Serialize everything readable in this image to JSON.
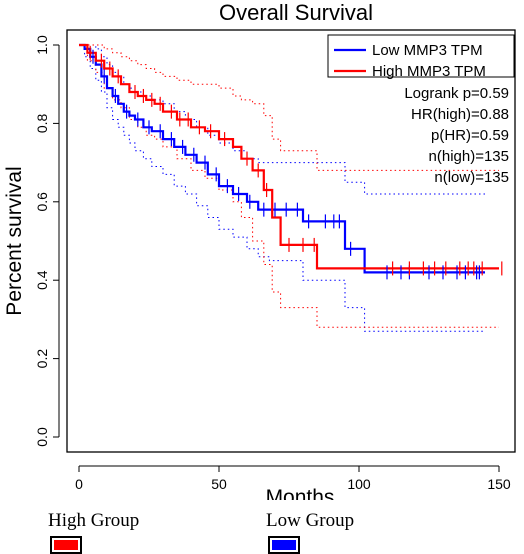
{
  "chart_data": {
    "type": "line",
    "title": "Overall Survival",
    "xlabel": "Months",
    "ylabel": "Percent survival",
    "xlim": [
      0,
      150
    ],
    "ylim": [
      0,
      1.0
    ],
    "x_ticks": [
      "0",
      "50",
      "100",
      "150"
    ],
    "y_ticks": [
      "0.0",
      "0.2",
      "0.4",
      "0.6",
      "0.8",
      "1.0"
    ],
    "series": [
      {
        "name": "Low MMP3 TPM",
        "color": "#0000ff",
        "x": [
          0,
          2,
          4,
          6,
          8,
          10,
          12,
          14,
          16,
          18,
          20,
          23,
          26,
          30,
          34,
          38,
          42,
          46,
          50,
          55,
          60,
          64,
          68,
          80,
          95,
          102,
          145
        ],
        "y": [
          1.0,
          0.99,
          0.97,
          0.95,
          0.92,
          0.89,
          0.87,
          0.85,
          0.83,
          0.82,
          0.81,
          0.79,
          0.78,
          0.76,
          0.74,
          0.72,
          0.7,
          0.67,
          0.64,
          0.62,
          0.6,
          0.58,
          0.58,
          0.55,
          0.48,
          0.42,
          0.42
        ],
        "ci_upper": [
          1.0,
          1.0,
          1.0,
          0.99,
          0.97,
          0.95,
          0.93,
          0.92,
          0.9,
          0.89,
          0.88,
          0.87,
          0.86,
          0.85,
          0.83,
          0.81,
          0.79,
          0.77,
          0.75,
          0.73,
          0.71,
          0.7,
          0.7,
          0.7,
          0.65,
          0.62,
          0.62
        ],
        "ci_lower": [
          1.0,
          0.97,
          0.94,
          0.91,
          0.88,
          0.84,
          0.81,
          0.79,
          0.77,
          0.75,
          0.73,
          0.71,
          0.69,
          0.67,
          0.64,
          0.62,
          0.59,
          0.56,
          0.53,
          0.51,
          0.48,
          0.46,
          0.45,
          0.4,
          0.33,
          0.27,
          0.27
        ]
      },
      {
        "name": "High MMP3 TPM",
        "color": "#ff0000",
        "x": [
          0,
          3,
          6,
          9,
          12,
          15,
          18,
          21,
          24,
          27,
          30,
          35,
          40,
          45,
          50,
          55,
          58,
          62,
          66,
          69,
          72,
          85,
          150
        ],
        "y": [
          1.0,
          0.98,
          0.96,
          0.94,
          0.92,
          0.9,
          0.88,
          0.87,
          0.86,
          0.85,
          0.83,
          0.81,
          0.79,
          0.78,
          0.76,
          0.74,
          0.71,
          0.68,
          0.63,
          0.56,
          0.49,
          0.43,
          0.43
        ],
        "ci_upper": [
          1.0,
          1.0,
          1.0,
          0.99,
          0.98,
          0.97,
          0.96,
          0.95,
          0.94,
          0.93,
          0.92,
          0.91,
          0.9,
          0.9,
          0.89,
          0.87,
          0.86,
          0.85,
          0.82,
          0.76,
          0.73,
          0.68,
          0.68
        ],
        "ci_lower": [
          1.0,
          0.96,
          0.93,
          0.89,
          0.86,
          0.84,
          0.81,
          0.79,
          0.77,
          0.76,
          0.74,
          0.71,
          0.68,
          0.66,
          0.63,
          0.6,
          0.56,
          0.5,
          0.44,
          0.37,
          0.33,
          0.28,
          0.28
        ]
      }
    ],
    "censor_marks": [
      {
        "series": "Low MMP3 TPM",
        "x": [
          5,
          9,
          13,
          17,
          21,
          25,
          29,
          33,
          37,
          41,
          45,
          49,
          53,
          57,
          61,
          66,
          70,
          74,
          78,
          82,
          88,
          91,
          93,
          97,
          110,
          115,
          118,
          125,
          130,
          135,
          138,
          142,
          143
        ]
      },
      {
        "series": "High MMP3 TPM",
        "x": [
          4,
          8,
          11,
          14,
          20,
          23,
          26,
          29,
          33,
          36,
          39,
          43,
          47,
          52,
          60,
          64,
          67,
          75,
          80,
          84,
          112,
          118,
          123,
          127,
          131,
          136,
          139,
          141,
          144,
          151
        ]
      }
    ],
    "legend": {
      "placement": "top-right",
      "entries": [
        {
          "label": "Low MMP3 TPM",
          "color": "#0000ff"
        },
        {
          "label": "High MMP3 TPM",
          "color": "#ff0000"
        }
      ],
      "stats": [
        "Logrank p=0.59",
        "HR(high)=0.88",
        "p(HR)=0.59",
        "n(high)=135",
        "n(low)=135"
      ]
    },
    "grid": false
  },
  "bottom_legend": {
    "high_label": "High Group",
    "high_color": "#ff0000",
    "low_label": "Low Group",
    "low_color": "#0000ff"
  }
}
